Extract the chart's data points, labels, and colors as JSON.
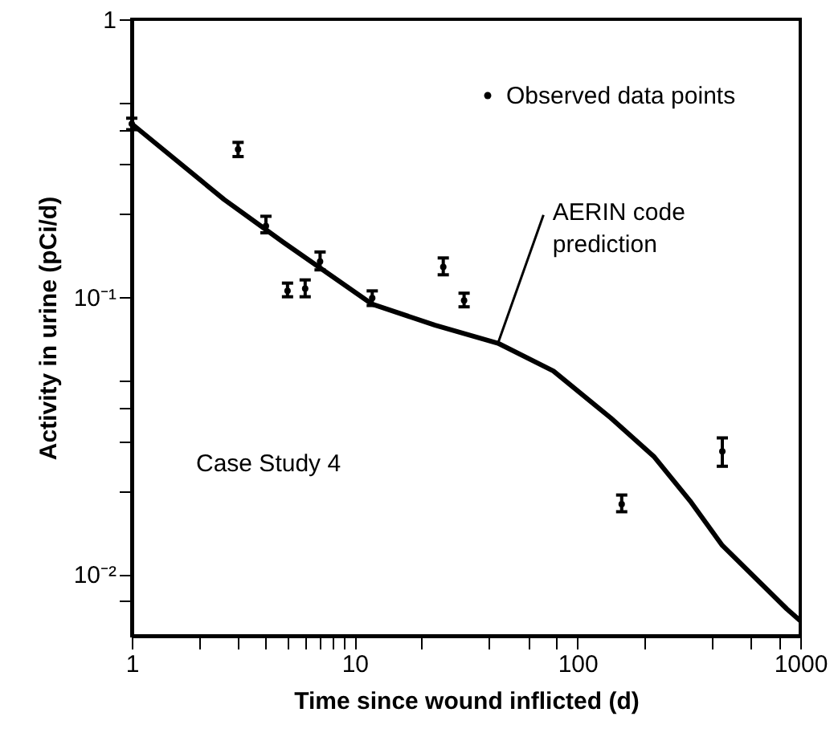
{
  "chart_data": {
    "type": "scatter",
    "xlabel": "Time since wound inflicted (d)",
    "ylabel": "Activity in urine (pCi/d)",
    "log": "xy",
    "xlim": [
      1,
      1000
    ],
    "ylim": [
      0.006,
      1
    ],
    "xticks": [
      1,
      {
        "value": 2,
        "label": null
      },
      {
        "value": 3,
        "label": null
      },
      {
        "value": 4,
        "label": null
      },
      {
        "value": 5,
        "label": null
      },
      {
        "value": 6,
        "label": null
      },
      {
        "value": 7,
        "label": null
      },
      {
        "value": 8,
        "label": null
      },
      {
        "value": 9,
        "label": null
      },
      10,
      {
        "value": 20,
        "label": null
      },
      {
        "value": 40,
        "label": null
      },
      {
        "value": 60,
        "label": null
      },
      {
        "value": 80,
        "label": null
      },
      100,
      {
        "value": 200,
        "label": null
      },
      {
        "value": 400,
        "label": null
      },
      {
        "value": 600,
        "label": null
      },
      {
        "value": 800,
        "label": null
      },
      1000
    ],
    "yticks": [
      {
        "value": 0.008,
        "label": null
      },
      {
        "value": 0.01,
        "label": "10⁻²"
      },
      {
        "value": 0.02,
        "label": null
      },
      {
        "value": 0.03,
        "label": null
      },
      {
        "value": 0.04,
        "label": null
      },
      {
        "value": 0.05,
        "label": null
      },
      {
        "value": 0.1,
        "label": "10⁻¹"
      },
      {
        "value": 0.2,
        "label": null
      },
      {
        "value": 0.3,
        "label": null
      },
      {
        "value": 0.4,
        "label": null
      },
      {
        "value": 0.5,
        "label": null
      },
      1
    ],
    "grid": false,
    "legend": "top right",
    "series": [
      {
        "name": "Observed data points",
        "color": "#000000",
        "marker": "circle",
        "x": [
          1,
          3,
          4,
          5,
          6,
          7,
          12,
          25,
          31,
          158,
          447
        ],
        "values": [
          0.42,
          0.34,
          0.18,
          0.105,
          0.107,
          0.134,
          0.099,
          0.128,
          0.097,
          0.0179,
          0.0277
        ],
        "errors": [
          [
            0.4,
            0.44
          ],
          [
            0.32,
            0.36
          ],
          [
            0.17,
            0.195
          ],
          [
            0.1,
            0.112
          ],
          [
            0.1,
            0.115
          ],
          [
            0.125,
            0.145
          ],
          [
            0.093,
            0.105
          ],
          [
            0.12,
            0.138
          ],
          [
            0.092,
            0.103
          ],
          [
            0.0168,
            0.0193
          ],
          [
            0.0245,
            0.031
          ]
        ]
      },
      {
        "type": "line",
        "color": "#000000",
        "line_style": "solid",
        "x": [
          1,
          2.6,
          4.8,
          12,
          23,
          44,
          78,
          141,
          220,
          320,
          447,
          870,
          1000
        ],
        "values": [
          0.42,
          0.224,
          0.157,
          0.094,
          0.079,
          0.068,
          0.054,
          0.0366,
          0.0266,
          0.0184,
          0.0127,
          0.0075,
          0.0068
        ]
      }
    ],
    "annotations": [
      {
        "text": "AERIN code prediction",
        "x": 44,
        "y": 0.068
      },
      "Case Study 4"
    ]
  }
}
